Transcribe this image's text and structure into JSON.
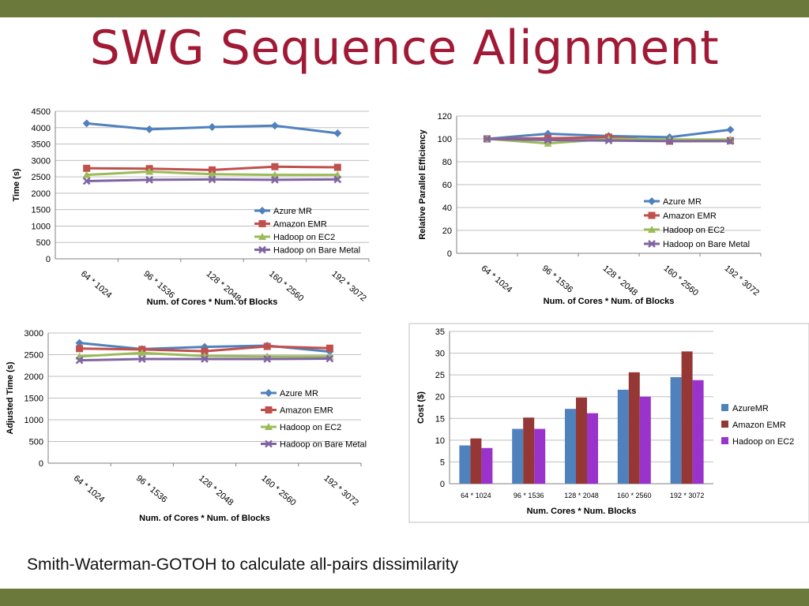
{
  "slide": {
    "title": "SWG Sequence Alignment",
    "caption": "Smith-Waterman-GOTOH to calculate all-pairs dissimilarity"
  },
  "colors": {
    "azure": "#4f81bd",
    "emr": "#c0504d",
    "ec2": "#9bbb59",
    "bare": "#8064a2",
    "cost_azure": "#4f81bd",
    "cost_emr": "#953735",
    "cost_ec2": "#9933cc"
  },
  "chart_data": [
    {
      "type": "line",
      "categories": [
        "64 * 1024",
        "96 * 1536",
        "128 * 2048",
        "160 * 2560",
        "192 * 3072"
      ],
      "ylabel": "Time (s)",
      "xlabel": "Num. of Cores * Num. of Blocks",
      "ylim": [
        0,
        4500
      ],
      "yticks": [
        0,
        500,
        1000,
        1500,
        2000,
        2500,
        3000,
        3500,
        4000,
        4500
      ],
      "series": [
        {
          "name": "Azure MR",
          "values": [
            4130,
            3950,
            4020,
            4060,
            3830
          ]
        },
        {
          "name": "Amazon EMR",
          "values": [
            2760,
            2750,
            2710,
            2810,
            2790
          ]
        },
        {
          "name": "Hadoop on EC2",
          "values": [
            2560,
            2660,
            2580,
            2560,
            2560
          ]
        },
        {
          "name": "Hadoop on Bare Metal",
          "values": [
            2370,
            2410,
            2420,
            2410,
            2420
          ]
        }
      ],
      "legend": "bottom-right"
    },
    {
      "type": "line",
      "categories": [
        "64 * 1024",
        "96 * 1536",
        "128 * 2048",
        "160 * 2560",
        "192 * 3072"
      ],
      "ylabel": "Relative Parallel Efficiency",
      "xlabel": "Num. of Cores * Num. of Blocks",
      "ylim": [
        0,
        120
      ],
      "yticks": [
        0,
        20,
        40,
        60,
        80,
        100,
        120
      ],
      "series": [
        {
          "name": "Azure MR",
          "values": [
            100,
            104.5,
            102.5,
            101.5,
            108
          ]
        },
        {
          "name": "Amazon EMR",
          "values": [
            100,
            100.5,
            101.5,
            98,
            98.5
          ]
        },
        {
          "name": "Hadoop on EC2",
          "values": [
            100,
            96,
            100,
            99.5,
            99.5
          ]
        },
        {
          "name": "Hadoop on Bare Metal",
          "values": [
            100,
            99,
            98.5,
            98,
            98
          ]
        }
      ],
      "legend": "bottom-right"
    },
    {
      "type": "line",
      "categories": [
        "64 * 1024",
        "96 * 1536",
        "128 * 2048",
        "160 * 2560",
        "192 * 3072"
      ],
      "ylabel": "Adjusted Time (s)",
      "xlabel": "Num. of Cores * Num. of Blocks",
      "ylim": [
        0,
        3000
      ],
      "yticks": [
        0,
        500,
        1000,
        1500,
        2000,
        2500,
        3000
      ],
      "series": [
        {
          "name": "Azure MR",
          "values": [
            2770,
            2630,
            2680,
            2710,
            2570
          ]
        },
        {
          "name": "Amazon EMR",
          "values": [
            2640,
            2620,
            2580,
            2690,
            2650
          ]
        },
        {
          "name": "Hadoop on EC2",
          "values": [
            2460,
            2540,
            2470,
            2460,
            2460
          ]
        },
        {
          "name": "Hadoop on Bare Metal",
          "values": [
            2370,
            2400,
            2400,
            2400,
            2410
          ]
        }
      ],
      "legend": "bottom-right"
    },
    {
      "type": "bar",
      "categories": [
        "64 * 1024",
        "96 * 1536",
        "128 * 2048",
        "160 * 2560",
        "192 * 3072"
      ],
      "ylabel": "Cost ($)",
      "xlabel": "Num. Cores * Num. Blocks",
      "ylim": [
        0,
        35
      ],
      "yticks": [
        0,
        5,
        10,
        15,
        20,
        25,
        30,
        35
      ],
      "series": [
        {
          "name": "AzureMR",
          "values": [
            8.8,
            12.6,
            17.2,
            21.6,
            24.5
          ]
        },
        {
          "name": "Amazon EMR",
          "values": [
            10.4,
            15.2,
            19.8,
            25.6,
            30.4
          ]
        },
        {
          "name": "Hadoop on EC2",
          "values": [
            8.2,
            12.6,
            16.2,
            20.0,
            23.8
          ]
        }
      ],
      "legend": "right"
    }
  ]
}
